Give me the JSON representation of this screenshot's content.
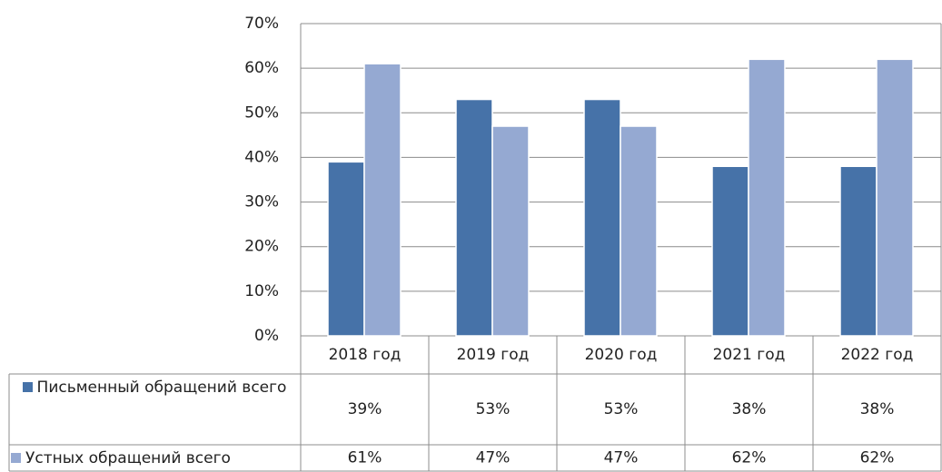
{
  "chart_data": {
    "type": "bar",
    "categories": [
      "2018 год",
      "2019 год",
      "2020 год",
      "2021 год",
      "2022 год"
    ],
    "series": [
      {
        "name": "Письменный обращений всего",
        "color": "#4672a8",
        "values": [
          39,
          53,
          53,
          38,
          38
        ],
        "value_labels": [
          "39%",
          "53%",
          "53%",
          "38%",
          "38%"
        ]
      },
      {
        "name": "Устных обращений всего",
        "color": "#95a9d2",
        "values": [
          61,
          47,
          47,
          62,
          62
        ],
        "value_labels": [
          "61%",
          "47%",
          "47%",
          "62%",
          "62%"
        ]
      }
    ],
    "ylim": [
      0,
      70
    ],
    "yticks": [
      {
        "value": 0,
        "label": "0%"
      },
      {
        "value": 10,
        "label": "10%"
      },
      {
        "value": 20,
        "label": "20%"
      },
      {
        "value": 30,
        "label": "30%"
      },
      {
        "value": 40,
        "label": "40%"
      },
      {
        "value": 50,
        "label": "50%"
      },
      {
        "value": 60,
        "label": "60%"
      },
      {
        "value": 70,
        "label": "70%"
      }
    ],
    "grid": true
  }
}
